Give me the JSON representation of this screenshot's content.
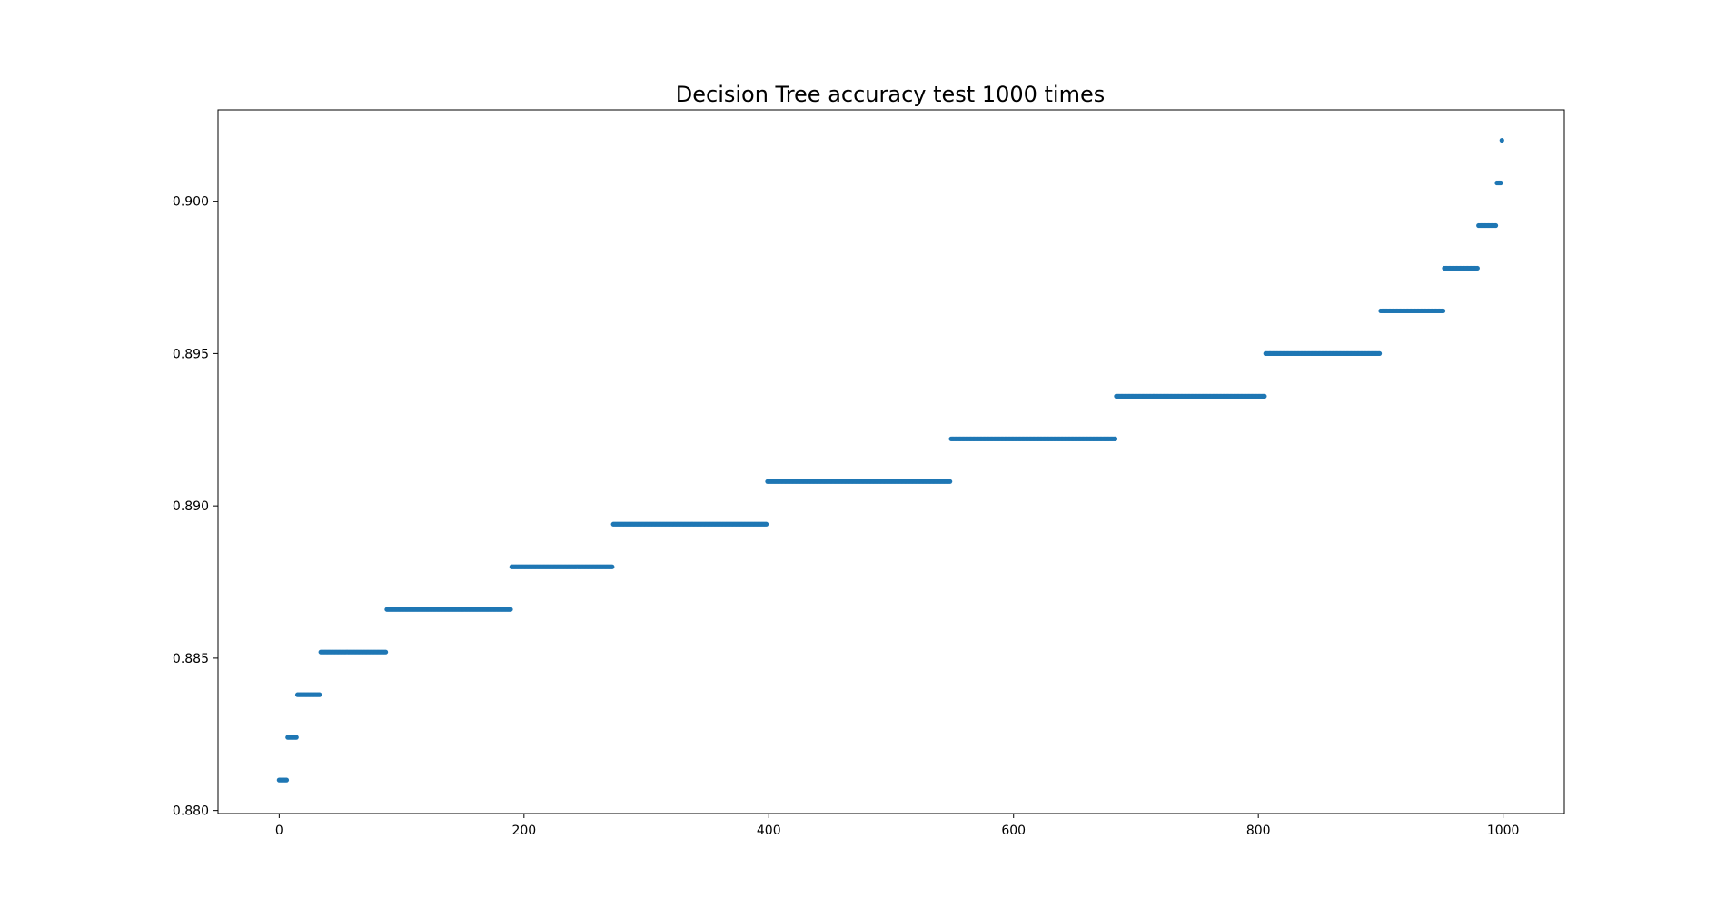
{
  "chart_data": {
    "type": "scatter",
    "title": "Decision Tree accuracy test 1000 times",
    "xlabel": "",
    "ylabel": "",
    "xlim": [
      -50,
      1050
    ],
    "ylim": [
      0.8799,
      0.903
    ],
    "xticks": [
      0,
      200,
      400,
      600,
      800,
      1000
    ],
    "xtick_labels": [
      "0",
      "200",
      "400",
      "600",
      "800",
      "1000"
    ],
    "yticks": [
      0.88,
      0.885,
      0.89,
      0.895,
      0.9
    ],
    "ytick_labels": [
      "0.880",
      "0.885",
      "0.890",
      "0.895",
      "0.900"
    ],
    "grid": false,
    "legend": "none",
    "series": [
      {
        "color": "#1f77b4",
        "segments": [
          {
            "x_start": 0,
            "x_end": 6,
            "y": 0.881
          },
          {
            "x_start": 7,
            "x_end": 14,
            "y": 0.8824
          },
          {
            "x_start": 15,
            "x_end": 33,
            "y": 0.8838
          },
          {
            "x_start": 34,
            "x_end": 87,
            "y": 0.8852
          },
          {
            "x_start": 88,
            "x_end": 189,
            "y": 0.8866
          },
          {
            "x_start": 190,
            "x_end": 272,
            "y": 0.888
          },
          {
            "x_start": 273,
            "x_end": 398,
            "y": 0.8894
          },
          {
            "x_start": 399,
            "x_end": 548,
            "y": 0.8908
          },
          {
            "x_start": 549,
            "x_end": 683,
            "y": 0.8922
          },
          {
            "x_start": 684,
            "x_end": 805,
            "y": 0.8936
          },
          {
            "x_start": 806,
            "x_end": 899,
            "y": 0.895
          },
          {
            "x_start": 900,
            "x_end": 951,
            "y": 0.8964
          },
          {
            "x_start": 952,
            "x_end": 979,
            "y": 0.8978
          },
          {
            "x_start": 980,
            "x_end": 994,
            "y": 0.8992
          },
          {
            "x_start": 995,
            "x_end": 998,
            "y": 0.9006
          },
          {
            "x_start": 999,
            "x_end": 999,
            "y": 0.902
          }
        ]
      }
    ]
  }
}
